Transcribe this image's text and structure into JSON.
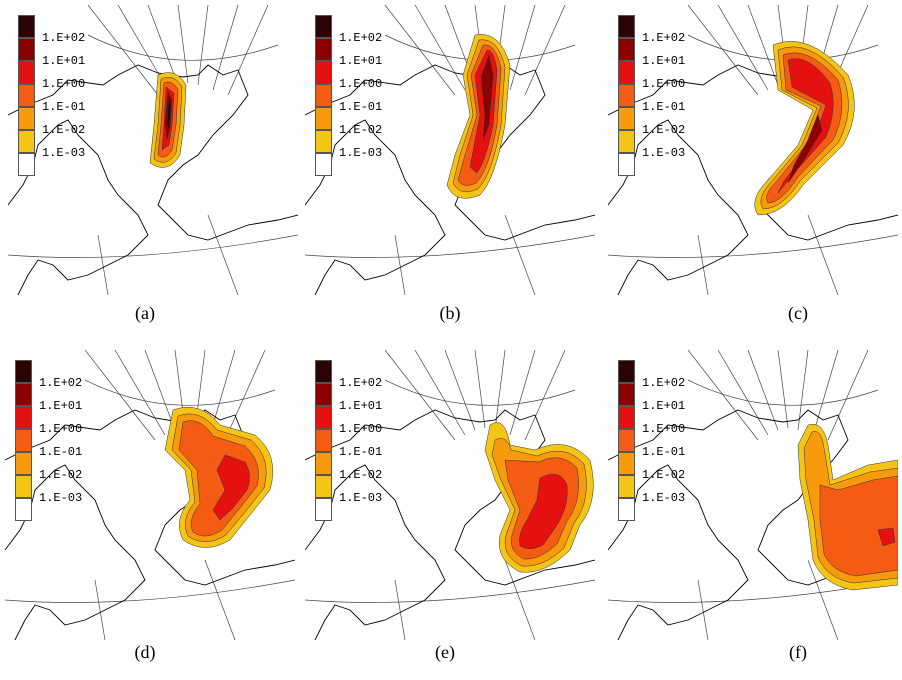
{
  "legend": {
    "labels": [
      "1.E+02",
      "1.E+01",
      "1.E+00",
      "1.E-01",
      "1.E-02",
      "1.E-03"
    ],
    "colors": [
      "#2a0503",
      "#8b0000",
      "#e51010",
      "#f45c14",
      "#f79a0c",
      "#f4c417",
      "#ffffff"
    ]
  },
  "panels": [
    {
      "caption": "(a)"
    },
    {
      "caption": "(b)"
    },
    {
      "caption": "(c)"
    },
    {
      "caption": "(d)"
    },
    {
      "caption": "(e)"
    },
    {
      "caption": "(f)"
    }
  ]
}
